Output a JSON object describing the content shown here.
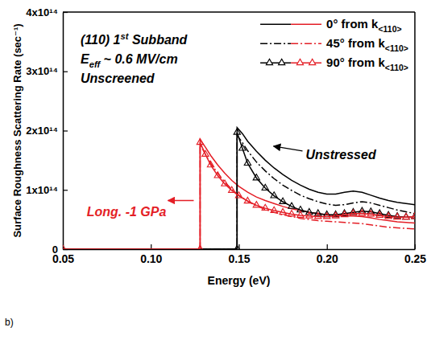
{
  "chart_data": {
    "type": "line",
    "xlabel": "Energy (eV)",
    "ylabel": "Surface Roughness Scattering Rate (sec⁻¹)",
    "xlim": [
      0.05,
      0.25
    ],
    "xticks": [
      0.05,
      {
        "value": 0.1,
        "label": "0.10"
      },
      0.15,
      {
        "value": 0.2,
        "label": "0.20"
      },
      0.25
    ],
    "ylim": [
      0,
      400000000000000.0
    ],
    "yticks": [
      0,
      {
        "value": 100000000000000.0,
        "label": "1x10¹⁴"
      },
      {
        "value": 200000000000000.0,
        "label": "2x10¹⁴"
      },
      {
        "value": 300000000000000.0,
        "label": "3x10¹⁴"
      },
      {
        "value": 400000000000000.0,
        "label": "4x10¹⁴"
      }
    ],
    "legend": "top right",
    "panel_label": "b)",
    "annotations": [
      {
        "text": "(110) 1",
        "superscript": "st",
        "after": " Subband"
      },
      {
        "text": "E",
        "subscript": "eff",
        "after": " ~ 0.6 MV/cm"
      },
      {
        "text": "Unscreened"
      },
      {
        "text": "Unstressed",
        "color": "#000000",
        "x": 0.188,
        "y": 152000000000000.0
      },
      {
        "text": "Long. -1 GPa",
        "color": "#e41e26",
        "x": 0.0636,
        "y": 55000000000000.0
      }
    ],
    "series": [
      {
        "name": "0° from k<110>",
        "color": "#000000",
        "line_style": "solid",
        "x": [
          0.05,
          0.149,
          0.149,
          0.152,
          0.155,
          0.16,
          0.165,
          0.17,
          0.175,
          0.18,
          0.185,
          0.19,
          0.195,
          0.2,
          0.205,
          0.21,
          0.215,
          0.22,
          0.225,
          0.23,
          0.235,
          0.24,
          0.245,
          0.25
        ],
        "values": [
          0,
          0,
          205000000000000.0,
          195000000000000.0,
          182000000000000.0,
          165000000000000.0,
          150000000000000.0,
          137000000000000.0,
          126000000000000.0,
          116000000000000.0,
          108000000000000.0,
          101000000000000.0,
          96000000000000.0,
          93000000000000.0,
          93000000000000.0,
          96000000000000.0,
          98000000000000.0,
          96000000000000.0,
          91000000000000.0,
          86000000000000.0,
          82000000000000.0,
          79000000000000.0,
          77000000000000.0,
          75000000000000.0
        ]
      },
      {
        "name": "0° from k<110>",
        "color": "#e41e26",
        "line_style": "solid",
        "x": [
          0.05,
          0.128,
          0.128,
          0.131,
          0.134,
          0.138,
          0.142,
          0.146,
          0.15,
          0.155,
          0.16,
          0.165,
          0.17,
          0.175,
          0.18,
          0.185,
          0.19,
          0.195,
          0.2,
          0.205,
          0.21,
          0.215,
          0.22,
          0.225,
          0.23,
          0.235,
          0.24,
          0.245,
          0.25
        ],
        "values": [
          0,
          0,
          185000000000000.0,
          172000000000000.0,
          158000000000000.0,
          142000000000000.0,
          128000000000000.0,
          116000000000000.0,
          106000000000000.0,
          96000000000000.0,
          88000000000000.0,
          82000000000000.0,
          77000000000000.0,
          72000000000000.0,
          68000000000000.0,
          65000000000000.0,
          62000000000000.0,
          60000000000000.0,
          58000000000000.0,
          57000000000000.0,
          56000000000000.0,
          56000000000000.0,
          55000000000000.0,
          53000000000000.0,
          50000000000000.0,
          48000000000000.0,
          46000000000000.0,
          45000000000000.0,
          44000000000000.0
        ]
      },
      {
        "name": "45° from k<110>",
        "color": "#000000",
        "line_style": "dashdot",
        "x": [
          0.05,
          0.149,
          0.149,
          0.152,
          0.155,
          0.16,
          0.165,
          0.17,
          0.175,
          0.18,
          0.185,
          0.19,
          0.195,
          0.2,
          0.205,
          0.21,
          0.215,
          0.22,
          0.225,
          0.23,
          0.235,
          0.24,
          0.245,
          0.25
        ],
        "values": [
          0,
          0,
          192000000000000.0,
          180000000000000.0,
          166000000000000.0,
          147000000000000.0,
          132000000000000.0,
          119000000000000.0,
          108000000000000.0,
          99000000000000.0,
          91000000000000.0,
          85000000000000.0,
          80000000000000.0,
          76000000000000.0,
          74000000000000.0,
          75000000000000.0,
          78000000000000.0,
          80000000000000.0,
          78000000000000.0,
          74000000000000.0,
          70000000000000.0,
          66000000000000.0,
          63000000000000.0,
          60000000000000.0
        ]
      },
      {
        "name": "45° from k<110>",
        "color": "#e41e26",
        "line_style": "dashdot",
        "x": [
          0.05,
          0.128,
          0.128,
          0.131,
          0.134,
          0.138,
          0.142,
          0.146,
          0.15,
          0.155,
          0.16,
          0.165,
          0.17,
          0.175,
          0.18,
          0.185,
          0.19,
          0.195,
          0.2,
          0.205,
          0.21,
          0.215,
          0.22,
          0.225,
          0.23,
          0.235,
          0.24,
          0.245,
          0.25
        ],
        "values": [
          0,
          0,
          176000000000000.0,
          160000000000000.0,
          145000000000000.0,
          128000000000000.0,
          113000000000000.0,
          101000000000000.0,
          91000000000000.0,
          81000000000000.0,
          73000000000000.0,
          67000000000000.0,
          62000000000000.0,
          58000000000000.0,
          55000000000000.0,
          52000000000000.0,
          50000000000000.0,
          48000000000000.0,
          47000000000000.0,
          46000000000000.0,
          45000000000000.0,
          44000000000000.0,
          43000000000000.0,
          41000000000000.0,
          39000000000000.0,
          37000000000000.0,
          36000000000000.0,
          35000000000000.0,
          34000000000000.0
        ]
      },
      {
        "name": "90° from k<110>",
        "color": "#000000",
        "line_style": "solid",
        "marker": "triangle",
        "x": [
          0.05,
          0.149,
          0.149,
          0.152,
          0.155,
          0.16,
          0.165,
          0.17,
          0.175,
          0.18,
          0.185,
          0.19,
          0.195,
          0.2,
          0.205,
          0.21,
          0.215,
          0.22,
          0.225,
          0.23,
          0.235,
          0.24,
          0.245,
          0.25
        ],
        "values": [
          0,
          0,
          197000000000000.0,
          170000000000000.0,
          145000000000000.0,
          120000000000000.0,
          103000000000000.0,
          90000000000000.0,
          80000000000000.0,
          72000000000000.0,
          66000000000000.0,
          62000000000000.0,
          60000000000000.0,
          58000000000000.0,
          58000000000000.0,
          60000000000000.0,
          62000000000000.0,
          64000000000000.0,
          63000000000000.0,
          60000000000000.0,
          57000000000000.0,
          55000000000000.0,
          54000000000000.0,
          55000000000000.0
        ]
      },
      {
        "name": "90° from k<110>",
        "color": "#e41e26",
        "line_style": "solid",
        "marker": "triangle",
        "x": [
          0.05,
          0.128,
          0.128,
          0.131,
          0.134,
          0.138,
          0.142,
          0.146,
          0.15,
          0.155,
          0.16,
          0.165,
          0.17,
          0.175,
          0.18,
          0.185,
          0.19,
          0.195,
          0.2,
          0.205,
          0.21,
          0.215,
          0.22,
          0.225,
          0.23,
          0.235,
          0.24,
          0.245,
          0.25
        ],
        "values": [
          0,
          0,
          180000000000000.0,
          160000000000000.0,
          142000000000000.0,
          124000000000000.0,
          110000000000000.0,
          99000000000000.0,
          90000000000000.0,
          81000000000000.0,
          74000000000000.0,
          69000000000000.0,
          65000000000000.0,
          62000000000000.0,
          59000000000000.0,
          57000000000000.0,
          56000000000000.0,
          55000000000000.0,
          55000000000000.0,
          56000000000000.0,
          58000000000000.0,
          60000000000000.0,
          60000000000000.0,
          59000000000000.0,
          57000000000000.0,
          55000000000000.0,
          54000000000000.0,
          54000000000000.0,
          55000000000000.0
        ]
      }
    ]
  }
}
